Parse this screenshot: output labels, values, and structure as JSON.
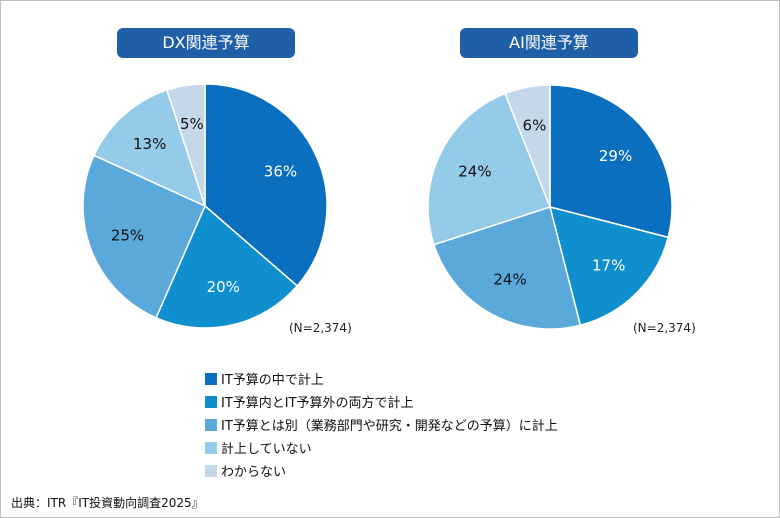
{
  "chart_data": [
    {
      "type": "pie",
      "title": "DX関連予算",
      "note": "(N=2,374)",
      "categories": [
        "IT予算の中で計上",
        "IT予算内とIT予算外の両方で計上",
        "IT予算とは別（業務部門や研究・開発などの予算）に計上",
        "計上していない",
        "わからない"
      ],
      "values": [
        36,
        20,
        25,
        13,
        5
      ],
      "value_labels": [
        "36%",
        "20%",
        "25%",
        "13%",
        "5%"
      ]
    },
    {
      "type": "pie",
      "title": "AI関連予算",
      "note": "(N=2,374)",
      "categories": [
        "IT予算の中で計上",
        "IT予算内とIT予算外の両方で計上",
        "IT予算とは別（業務部門や研究・開発などの予算）に計上",
        "計上していない",
        "わからない"
      ],
      "values": [
        29,
        17,
        24,
        24,
        6
      ],
      "value_labels": [
        "29%",
        "17%",
        "24%",
        "24%",
        "6%"
      ]
    }
  ],
  "colors": [
    "#0a6fbe",
    "#0f8fce",
    "#5aa9da",
    "#94cbe8",
    "#c5d8ea"
  ],
  "legend": {
    "placement": "bottom-center",
    "items": [
      "IT予算の中で計上",
      "IT予算内とIT予算外の両方で計上",
      "IT予算とは別（業務部門や研究・開発などの予算）に計上",
      "計上していない",
      "わからない"
    ]
  },
  "source": "出典：ITR『IT投資動向調査2025』"
}
